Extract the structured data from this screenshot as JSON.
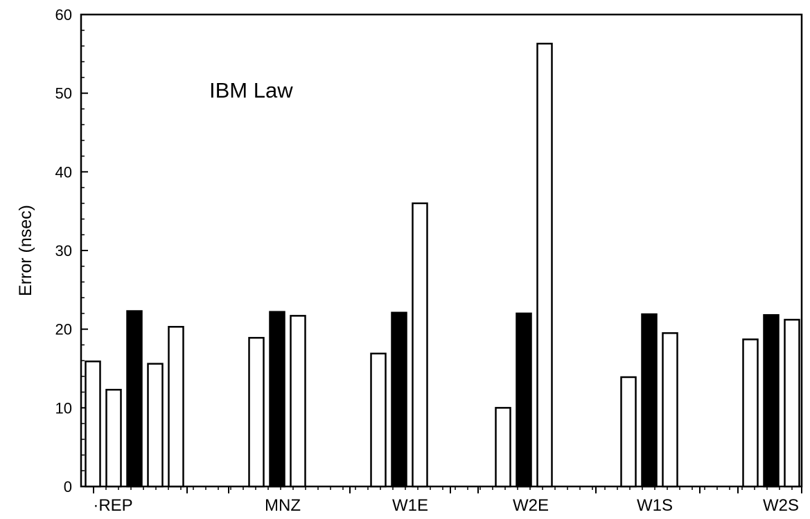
{
  "chart_data": {
    "type": "bar",
    "title": "IBM Law",
    "xlabel": "",
    "ylabel": "Error (nsec)",
    "ylim": [
      0,
      60
    ],
    "yticks": [
      0,
      10,
      20,
      30,
      40,
      50,
      60
    ],
    "grid": false,
    "legend": false,
    "colors": {
      "outline": "#000000",
      "fill_hollow": "#ffffff",
      "fill_solid": "#000000"
    },
    "categories": [
      {
        "label": "·REP",
        "bars": [
          {
            "value": 15.9,
            "fill": "hollow"
          },
          {
            "value": 12.3,
            "fill": "hollow"
          },
          {
            "value": 22.3,
            "fill": "solid"
          },
          {
            "value": 15.6,
            "fill": "hollow"
          },
          {
            "value": 20.3,
            "fill": "hollow"
          }
        ]
      },
      {
        "label": "MNZ",
        "bars": [
          {
            "value": 18.9,
            "fill": "hollow"
          },
          {
            "value": 22.2,
            "fill": "solid"
          },
          {
            "value": 21.7,
            "fill": "hollow"
          }
        ]
      },
      {
        "label": "W1E",
        "bars": [
          {
            "value": 16.9,
            "fill": "hollow"
          },
          {
            "value": 22.1,
            "fill": "solid"
          },
          {
            "value": 36.0,
            "fill": "hollow"
          }
        ]
      },
      {
        "label": "W2E",
        "bars": [
          {
            "value": 10.0,
            "fill": "hollow"
          },
          {
            "value": 22.0,
            "fill": "solid"
          },
          {
            "value": 56.3,
            "fill": "hollow"
          }
        ]
      },
      {
        "label": "W1S",
        "bars": [
          {
            "value": 13.9,
            "fill": "hollow"
          },
          {
            "value": 21.9,
            "fill": "solid"
          },
          {
            "value": 19.5,
            "fill": "hollow"
          }
        ]
      },
      {
        "label": "W2S",
        "bars": [
          {
            "value": 18.7,
            "fill": "hollow"
          },
          {
            "value": 21.8,
            "fill": "solid"
          },
          {
            "value": 21.2,
            "fill": "hollow"
          }
        ]
      }
    ]
  }
}
